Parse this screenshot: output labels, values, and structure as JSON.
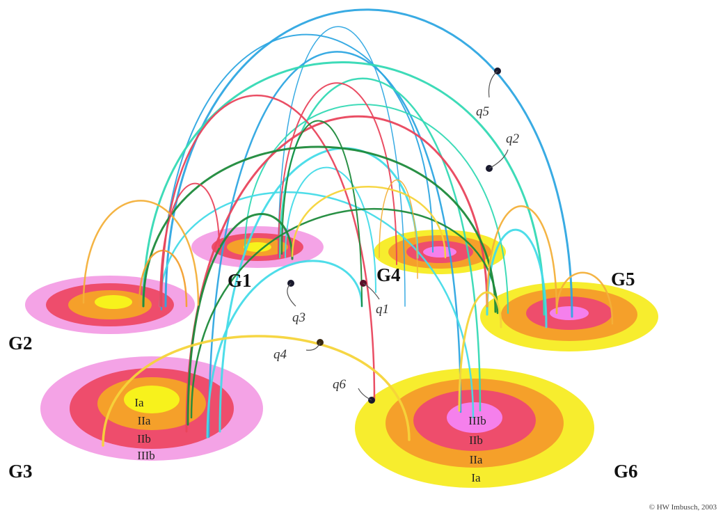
{
  "groups": [
    "G1",
    "G2",
    "G3",
    "G4",
    "G5",
    "G6"
  ],
  "queries": [
    "q1",
    "q2",
    "q3",
    "q4",
    "q5",
    "q6"
  ],
  "zones": {
    "G3": [
      "Ia",
      "IIa",
      "IIb",
      "IIIb"
    ],
    "G6": [
      "IIIb",
      "IIb",
      "IIa",
      "Ia"
    ]
  },
  "credit": "© HW Imbusch, 2003"
}
